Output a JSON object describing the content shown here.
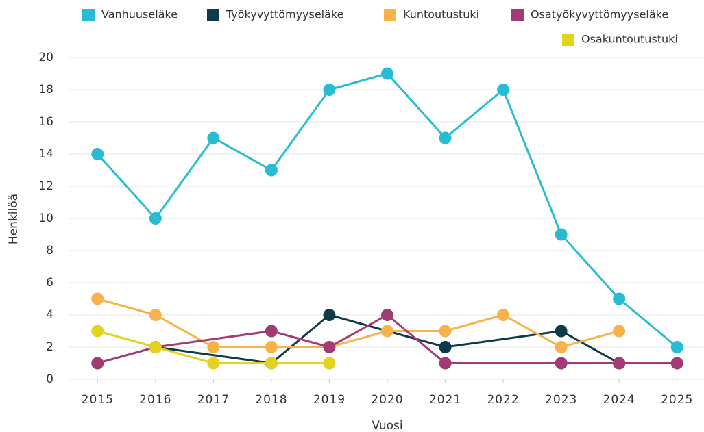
{
  "chart_data": {
    "type": "line",
    "xlabel": "Vuosi",
    "ylabel": "Henkilöä",
    "xlim": [
      2014.5,
      2025.5
    ],
    "xticks": [
      2015,
      2016,
      2017,
      2018,
      2019,
      2020,
      2021,
      2022,
      2023,
      2024,
      2025
    ],
    "ylim": [
      0,
      20
    ],
    "yticks": [
      0,
      2,
      4,
      6,
      8,
      10,
      12,
      14,
      16,
      18,
      20
    ],
    "grid": true,
    "series": [
      {
        "name": "Vanhuuseläke",
        "color": "#27bcd1",
        "x": [
          2015,
          2016,
          2017,
          2018,
          2019,
          2020,
          2021,
          2022,
          2023,
          2024,
          2025
        ],
        "values": [
          14,
          10,
          15,
          13,
          18,
          19,
          15,
          18,
          9,
          5,
          2
        ]
      },
      {
        "name": "Työkyvyttömyyseläke",
        "color": "#0f3a4a",
        "x": [
          2016,
          2018,
          2019,
          2021,
          2023,
          2024
        ],
        "values": [
          2,
          1,
          4,
          2,
          3,
          1
        ]
      },
      {
        "name": "Kuntoutustuki",
        "color": "#f8b24a",
        "x": [
          2015,
          2016,
          2017,
          2018,
          2019,
          2020,
          2021,
          2022,
          2023,
          2024
        ],
        "values": [
          5,
          4,
          2,
          2,
          2,
          3,
          3,
          4,
          2,
          3
        ]
      },
      {
        "name": "Osatyökyvyttömyyseläke",
        "color": "#a23a74",
        "x": [
          2015,
          2016,
          2018,
          2019,
          2020,
          2021,
          2023,
          2024,
          2025
        ],
        "values": [
          1,
          2,
          3,
          2,
          4,
          1,
          1,
          1,
          1
        ]
      },
      {
        "name": "Osakuntoutustuki",
        "color": "#e3d31c",
        "x": [
          2015,
          2016,
          2017,
          2018,
          2019
        ],
        "values": [
          3,
          2,
          1,
          1,
          1
        ]
      }
    ]
  }
}
